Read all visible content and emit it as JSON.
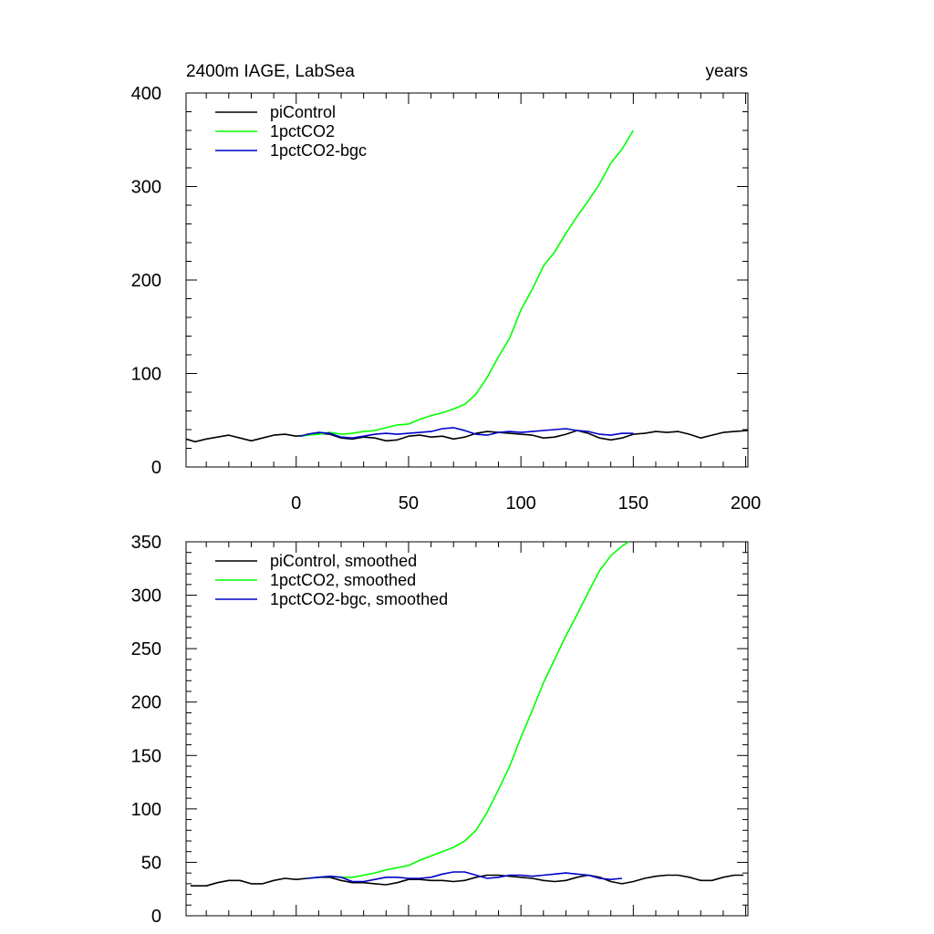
{
  "chart_data": [
    {
      "type": "line",
      "title": "2400m IAGE, LabSea",
      "subtitle": "years",
      "xlabel": "",
      "ylabel": "",
      "xlim": [
        -49,
        201
      ],
      "ylim": [
        0,
        400
      ],
      "xticks": [
        0,
        50,
        100,
        150,
        200
      ],
      "yticks": [
        0,
        100,
        200,
        300,
        400
      ],
      "xtick_labels": [
        "0",
        "50",
        "100",
        "150",
        "200"
      ],
      "ytick_labels": [
        "0",
        "100",
        "200",
        "300",
        "400"
      ],
      "legend_position": "top-left",
      "series": [
        {
          "name": "piControl",
          "color": "#000000",
          "x": [
            -49,
            -45,
            -40,
            -35,
            -30,
            -25,
            -20,
            -15,
            -10,
            -5,
            0,
            5,
            10,
            15,
            20,
            25,
            30,
            35,
            40,
            45,
            50,
            55,
            60,
            65,
            70,
            75,
            80,
            85,
            90,
            95,
            100,
            105,
            110,
            115,
            120,
            125,
            130,
            135,
            140,
            145,
            150,
            155,
            160,
            165,
            170,
            175,
            180,
            185,
            190,
            195,
            201
          ],
          "values": [
            30,
            27,
            30,
            32,
            34,
            31,
            28,
            31,
            34,
            35,
            33,
            34,
            36,
            35,
            31,
            30,
            32,
            31,
            28,
            29,
            33,
            34,
            32,
            33,
            30,
            32,
            36,
            38,
            37,
            36,
            35,
            34,
            31,
            32,
            35,
            39,
            36,
            31,
            29,
            31,
            35,
            36,
            38,
            37,
            38,
            35,
            31,
            34,
            37,
            38,
            39
          ]
        },
        {
          "name": "1pctCO2",
          "color": "#00ff00",
          "x": [
            2,
            5,
            10,
            15,
            20,
            25,
            30,
            35,
            40,
            45,
            50,
            55,
            60,
            65,
            70,
            75,
            80,
            85,
            90,
            95,
            100,
            105,
            110,
            115,
            120,
            125,
            130,
            135,
            140,
            145,
            150
          ],
          "values": [
            33,
            34,
            35,
            37,
            35,
            36,
            38,
            39,
            42,
            45,
            46,
            51,
            55,
            58,
            62,
            67,
            78,
            96,
            118,
            138,
            168,
            190,
            215,
            230,
            250,
            268,
            285,
            303,
            325,
            340,
            360
          ]
        },
        {
          "name": "1pctCO2-bgc",
          "color": "#0000cc",
          "x": [
            2,
            5,
            10,
            15,
            20,
            25,
            30,
            35,
            40,
            45,
            50,
            55,
            60,
            65,
            70,
            75,
            80,
            85,
            90,
            95,
            100,
            105,
            110,
            115,
            120,
            125,
            130,
            135,
            140,
            145,
            150
          ],
          "values": [
            33,
            35,
            37,
            36,
            32,
            31,
            33,
            35,
            36,
            35,
            36,
            37,
            38,
            41,
            42,
            39,
            35,
            34,
            37,
            38,
            37,
            38,
            39,
            40,
            41,
            39,
            38,
            35,
            34,
            36,
            36
          ]
        }
      ]
    },
    {
      "type": "line",
      "title": "",
      "xlabel": "",
      "ylabel": "",
      "xlim": [
        -49,
        201
      ],
      "ylim": [
        0,
        350
      ],
      "xticks": [
        0,
        50,
        100,
        150,
        200
      ],
      "yticks": [
        0,
        50,
        100,
        150,
        200,
        250,
        300,
        350
      ],
      "xtick_labels": [],
      "ytick_labels": [
        "0",
        "50",
        "100",
        "150",
        "200",
        "250",
        "300",
        "350"
      ],
      "legend_position": "top-left",
      "series": [
        {
          "name": "piControl, smoothed",
          "color": "#000000",
          "x": [
            -47,
            -40,
            -35,
            -30,
            -25,
            -20,
            -15,
            -10,
            -5,
            0,
            5,
            10,
            15,
            20,
            25,
            30,
            35,
            40,
            45,
            50,
            55,
            60,
            65,
            70,
            75,
            80,
            85,
            90,
            95,
            100,
            105,
            110,
            115,
            120,
            125,
            130,
            135,
            140,
            145,
            150,
            155,
            160,
            165,
            170,
            175,
            180,
            185,
            190,
            195,
            199
          ],
          "values": [
            28,
            28,
            31,
            33,
            33,
            30,
            30,
            33,
            35,
            34,
            35,
            36,
            36,
            33,
            31,
            31,
            30,
            29,
            31,
            34,
            34,
            33,
            33,
            32,
            33,
            36,
            38,
            38,
            37,
            36,
            35,
            33,
            32,
            33,
            36,
            38,
            36,
            32,
            30,
            32,
            35,
            37,
            38,
            38,
            36,
            33,
            33,
            36,
            38,
            38
          ]
        },
        {
          "name": "1pctCO2, smoothed",
          "color": "#00ff00",
          "x": [
            5,
            10,
            15,
            20,
            25,
            30,
            35,
            40,
            45,
            50,
            55,
            60,
            65,
            70,
            75,
            80,
            85,
            90,
            95,
            100,
            105,
            110,
            115,
            120,
            125,
            130,
            135,
            140,
            145,
            148
          ],
          "values": [
            35,
            36,
            37,
            36,
            36,
            38,
            40,
            43,
            45,
            47,
            52,
            56,
            60,
            64,
            70,
            80,
            97,
            118,
            140,
            167,
            192,
            218,
            240,
            262,
            282,
            303,
            323,
            337,
            346,
            350
          ]
        },
        {
          "name": "1pctCO2-bgc, smoothed",
          "color": "#0000cc",
          "x": [
            5,
            10,
            15,
            20,
            25,
            30,
            35,
            40,
            45,
            50,
            55,
            60,
            65,
            70,
            75,
            80,
            85,
            90,
            95,
            100,
            105,
            110,
            115,
            120,
            125,
            130,
            135,
            140,
            145
          ],
          "values": [
            35,
            36,
            37,
            36,
            32,
            32,
            34,
            36,
            36,
            35,
            35,
            36,
            39,
            41,
            41,
            38,
            35,
            36,
            38,
            38,
            37,
            38,
            39,
            40,
            39,
            38,
            35,
            34,
            35
          ]
        }
      ]
    }
  ]
}
